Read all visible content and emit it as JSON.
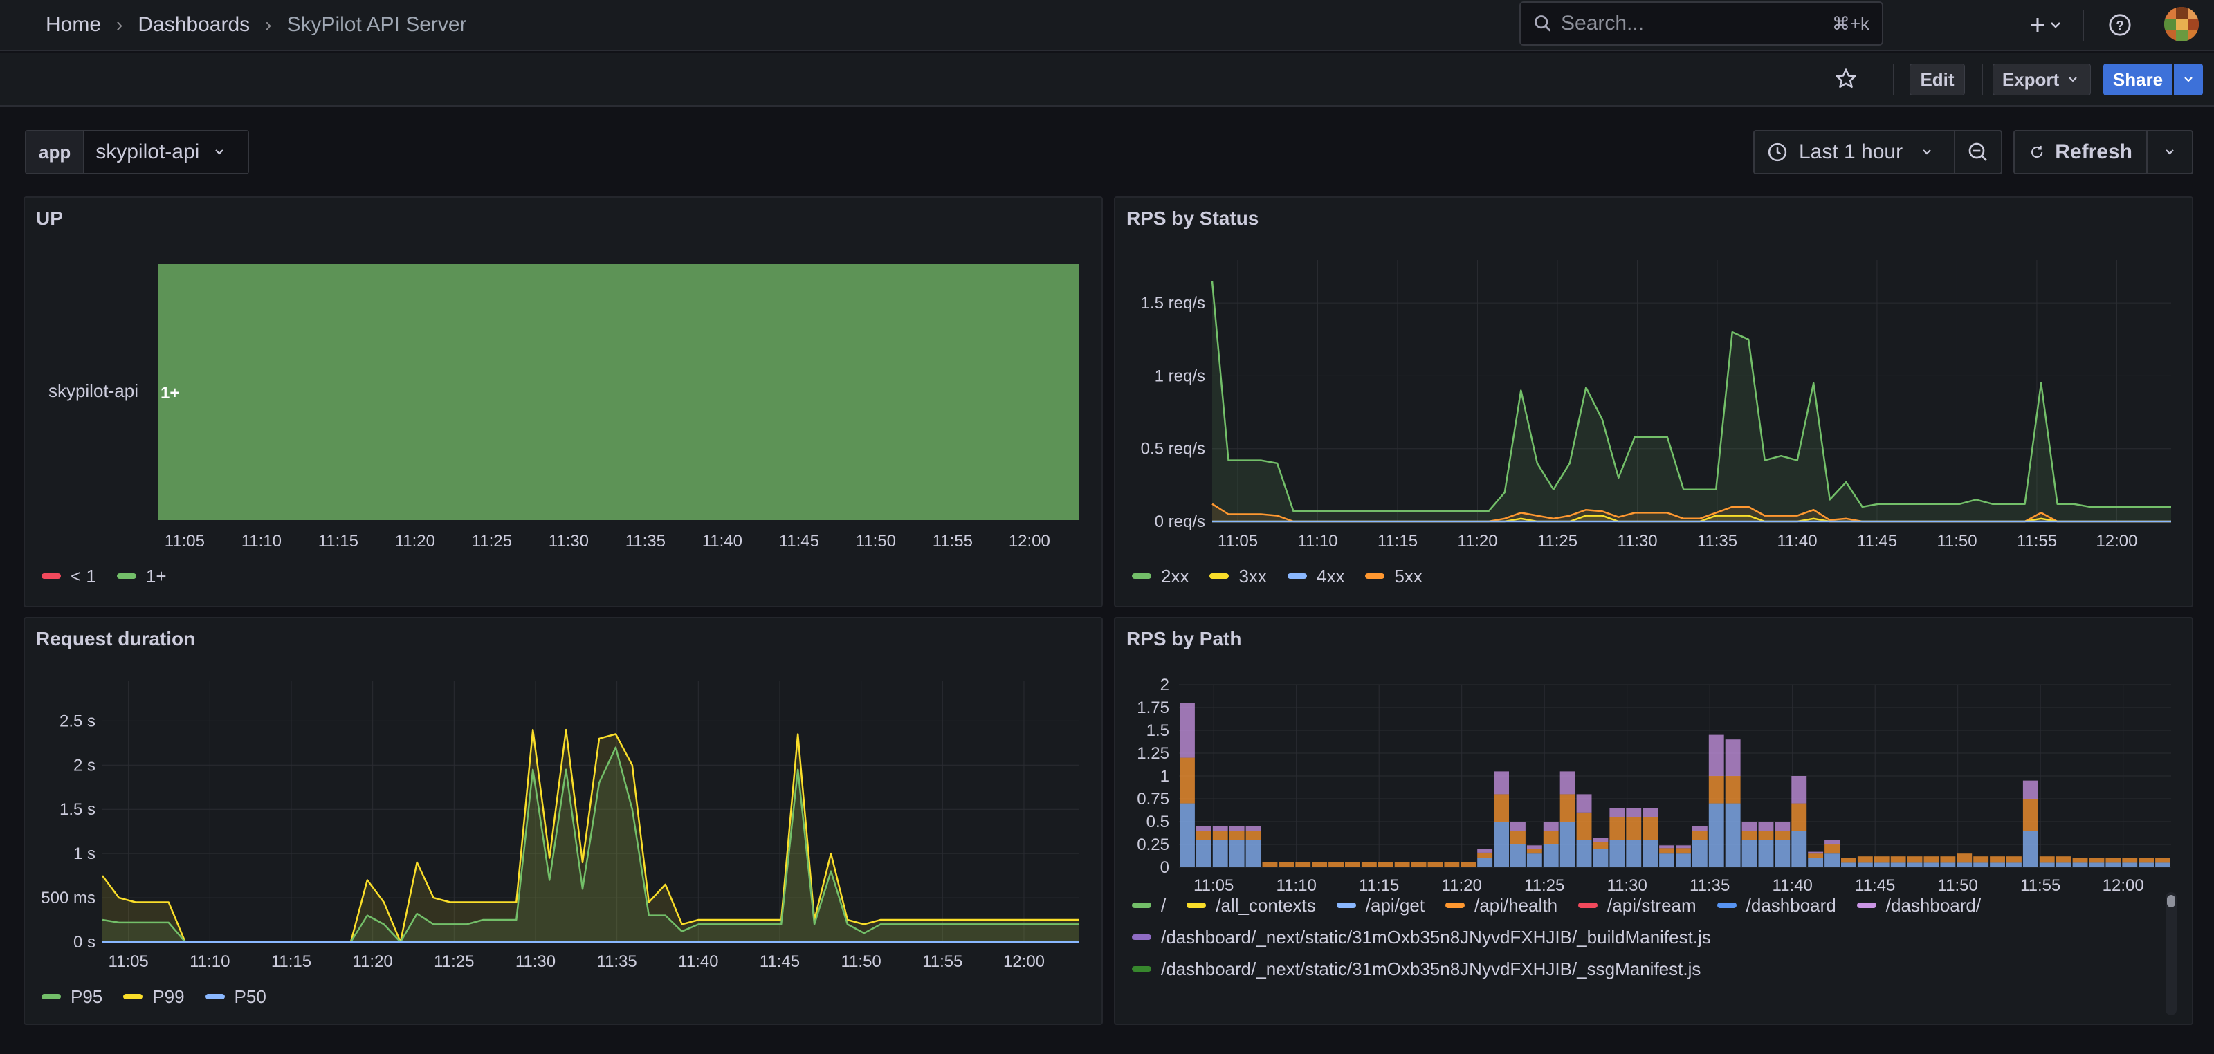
{
  "breadcrumb": {
    "home": "Home",
    "dashboards": "Dashboards",
    "current": "SkyPilot API Server"
  },
  "search": {
    "placeholder": "Search...",
    "shortcut": "⌘+k"
  },
  "toolbar": {
    "edit": "Edit",
    "export": "Export",
    "share": "Share"
  },
  "variable": {
    "label": "app",
    "value": "skypilot-api"
  },
  "time": {
    "range": "Last 1 hour",
    "refresh": "Refresh"
  },
  "icons": {
    "search": "search-icon",
    "star": "star-icon",
    "plus": "plus-icon",
    "help": "help-icon",
    "clock": "clock-icon",
    "zoom_out": "zoom-out-icon",
    "refresh": "refresh-icon"
  },
  "colors": {
    "green": "#73bf69",
    "yellow": "#fade2a",
    "blue": "#8ab8ff",
    "orange": "#ff9830",
    "red": "#f2495c",
    "purple": "#ca95e5",
    "darkgreen": "#37872d",
    "state_fill": "#5d9356"
  },
  "panels": {
    "up": {
      "title": "UP",
      "row_label": "skypilot-api",
      "value_text": "1+",
      "legend": [
        {
          "name": "< 1",
          "color": "#f2495c"
        },
        {
          "name": "1+",
          "color": "#73bf69"
        }
      ]
    },
    "rps_status": {
      "title": "RPS by Status",
      "legend": [
        {
          "name": "2xx",
          "color": "#73bf69"
        },
        {
          "name": "3xx",
          "color": "#fade2a"
        },
        {
          "name": "4xx",
          "color": "#8ab8ff"
        },
        {
          "name": "5xx",
          "color": "#ff9830"
        }
      ]
    },
    "duration": {
      "title": "Request duration",
      "legend": [
        {
          "name": "P95",
          "color": "#73bf69"
        },
        {
          "name": "P99",
          "color": "#fade2a"
        },
        {
          "name": "P50",
          "color": "#8ab8ff"
        }
      ]
    },
    "rps_path": {
      "title": "RPS by Path",
      "legend": [
        {
          "name": "/",
          "color": "#73bf69"
        },
        {
          "name": "/all_contexts",
          "color": "#fade2a"
        },
        {
          "name": "/api/get",
          "color": "#8ab8ff"
        },
        {
          "name": "/api/health",
          "color": "#ff9830"
        },
        {
          "name": "/api/stream",
          "color": "#f2495c"
        },
        {
          "name": "/dashboard",
          "color": "#5794f2"
        },
        {
          "name": "/dashboard/",
          "color": "#ca95e5"
        },
        {
          "name": "/dashboard/_next/static/31mOxb35n8JNyvdFXHJIB/_buildManifest.js",
          "color": "#8f6cc4"
        },
        {
          "name": "/dashboard/_next/static/31mOxb35n8JNyvdFXHJIB/_ssgManifest.js",
          "color": "#37872d"
        }
      ]
    }
  },
  "chart_data": [
    {
      "type": "heatmap",
      "title": "UP",
      "x_ticks": [
        "11:05",
        "11:10",
        "11:15",
        "11:20",
        "11:25",
        "11:30",
        "11:35",
        "11:40",
        "11:45",
        "11:50",
        "11:55",
        "12:00"
      ],
      "rows": [
        "skypilot-api"
      ],
      "state": "1+",
      "legend": [
        "< 1",
        "1+"
      ]
    },
    {
      "type": "area",
      "title": "RPS by Status",
      "x_ticks": [
        "11:05",
        "11:10",
        "11:15",
        "11:20",
        "11:25",
        "11:30",
        "11:35",
        "11:40",
        "11:45",
        "11:50",
        "11:55",
        "12:00"
      ],
      "y_ticks": [
        "0 req/s",
        "0.5 req/s",
        "1 req/s",
        "1.5 req/s"
      ],
      "ylim": [
        0,
        1.7
      ],
      "x": [
        0,
        1,
        2,
        3,
        4,
        5,
        6,
        7,
        8,
        9,
        10,
        11,
        12,
        13,
        14,
        15,
        16,
        17,
        18,
        19,
        20,
        21,
        22,
        23,
        24,
        25,
        26,
        27,
        28,
        29,
        30,
        31,
        32,
        33,
        34,
        35,
        36,
        37,
        38,
        39,
        40,
        41,
        42,
        43,
        44,
        45,
        46,
        47,
        48,
        49,
        50,
        51,
        52,
        53,
        54,
        55,
        56,
        57,
        58,
        59
      ],
      "series": [
        {
          "name": "2xx",
          "values": [
            1.65,
            0.42,
            0.42,
            0.42,
            0.4,
            0.07,
            0.07,
            0.07,
            0.07,
            0.07,
            0.07,
            0.07,
            0.07,
            0.07,
            0.07,
            0.07,
            0.07,
            0.07,
            0.2,
            0.9,
            0.4,
            0.22,
            0.4,
            0.92,
            0.7,
            0.3,
            0.58,
            0.58,
            0.58,
            0.22,
            0.22,
            0.22,
            1.3,
            1.25,
            0.42,
            0.45,
            0.42,
            0.95,
            0.15,
            0.27,
            0.1,
            0.12,
            0.12,
            0.12,
            0.12,
            0.12,
            0.12,
            0.15,
            0.12,
            0.12,
            0.12,
            0.95,
            0.12,
            0.12,
            0.1,
            0.1,
            0.1,
            0.1,
            0.1,
            0.1
          ]
        },
        {
          "name": "3xx",
          "values": [
            0,
            0,
            0,
            0,
            0,
            0,
            0,
            0,
            0,
            0,
            0,
            0,
            0,
            0,
            0,
            0,
            0,
            0,
            0,
            0.02,
            0,
            0,
            0,
            0.04,
            0.04,
            0,
            0,
            0,
            0,
            0,
            0,
            0.04,
            0.04,
            0.04,
            0,
            0,
            0,
            0.02,
            0,
            0,
            0,
            0,
            0,
            0,
            0,
            0,
            0,
            0,
            0,
            0,
            0,
            0.02,
            0,
            0,
            0,
            0,
            0,
            0,
            0,
            0
          ]
        },
        {
          "name": "4xx",
          "values": [
            0,
            0,
            0,
            0,
            0,
            0,
            0,
            0,
            0,
            0,
            0,
            0,
            0,
            0,
            0,
            0,
            0,
            0,
            0,
            0,
            0,
            0,
            0,
            0,
            0,
            0,
            0,
            0,
            0,
            0,
            0,
            0,
            0,
            0,
            0,
            0,
            0,
            0,
            0,
            0,
            0,
            0,
            0,
            0,
            0,
            0,
            0,
            0,
            0,
            0,
            0,
            0,
            0,
            0,
            0,
            0,
            0,
            0,
            0,
            0
          ]
        },
        {
          "name": "5xx",
          "values": [
            0.12,
            0.05,
            0.05,
            0.05,
            0.04,
            0,
            0,
            0,
            0,
            0,
            0,
            0,
            0,
            0,
            0,
            0,
            0,
            0,
            0.02,
            0.06,
            0.04,
            0.02,
            0.04,
            0.08,
            0.07,
            0.03,
            0.06,
            0.06,
            0.06,
            0.02,
            0.02,
            0.06,
            0.1,
            0.1,
            0.04,
            0.04,
            0.04,
            0.08,
            0.01,
            0.02,
            0,
            0,
            0,
            0,
            0,
            0,
            0,
            0,
            0,
            0,
            0,
            0.06,
            0,
            0,
            0,
            0,
            0,
            0,
            0,
            0
          ]
        }
      ]
    },
    {
      "type": "area",
      "title": "Request duration",
      "x_ticks": [
        "11:05",
        "11:10",
        "11:15",
        "11:20",
        "11:25",
        "11:30",
        "11:35",
        "11:40",
        "11:45",
        "11:50",
        "11:55",
        "12:00"
      ],
      "y_ticks": [
        "0 s",
        "500 ms",
        "1 s",
        "1.5 s",
        "2 s",
        "2.5 s"
      ],
      "ylim": [
        0,
        2.8
      ],
      "x": [
        0,
        1,
        2,
        3,
        4,
        5,
        6,
        7,
        8,
        9,
        10,
        11,
        12,
        13,
        14,
        15,
        16,
        17,
        18,
        19,
        20,
        21,
        22,
        23,
        24,
        25,
        26,
        27,
        28,
        29,
        30,
        31,
        32,
        33,
        34,
        35,
        36,
        37,
        38,
        39,
        40,
        41,
        42,
        43,
        44,
        45,
        46,
        47,
        48,
        49,
        50,
        51,
        52,
        53,
        54,
        55,
        56,
        57,
        58,
        59
      ],
      "series": [
        {
          "name": "P95",
          "values": [
            0.25,
            0.22,
            0.22,
            0.22,
            0.22,
            0,
            0,
            0,
            0,
            0,
            0,
            0,
            0,
            0,
            0,
            0,
            0.3,
            0.2,
            0,
            0.32,
            0.2,
            0.2,
            0.2,
            0.25,
            0.25,
            0.25,
            1.95,
            0.7,
            1.95,
            0.6,
            1.8,
            2.2,
            1.5,
            0.3,
            0.3,
            0.12,
            0.2,
            0.2,
            0.2,
            0.2,
            0.2,
            0.2,
            1.95,
            0.2,
            0.8,
            0.2,
            0.1,
            0.2,
            0.2,
            0.2,
            0.2,
            0.2,
            0.2,
            0.2,
            0.2,
            0.2,
            0.2,
            0.2,
            0.2,
            0.2
          ]
        },
        {
          "name": "P99",
          "values": [
            0.75,
            0.5,
            0.45,
            0.45,
            0.45,
            0,
            0,
            0,
            0,
            0,
            0,
            0,
            0,
            0,
            0,
            0,
            0.7,
            0.45,
            0,
            0.9,
            0.5,
            0.45,
            0.45,
            0.45,
            0.45,
            0.45,
            2.4,
            0.95,
            2.4,
            0.9,
            2.3,
            2.35,
            2.0,
            0.45,
            0.65,
            0.2,
            0.25,
            0.25,
            0.25,
            0.25,
            0.25,
            0.25,
            2.35,
            0.25,
            1.0,
            0.25,
            0.2,
            0.25,
            0.25,
            0.25,
            0.25,
            0.25,
            0.25,
            0.25,
            0.25,
            0.25,
            0.25,
            0.25,
            0.25,
            0.25
          ]
        },
        {
          "name": "P50",
          "values": [
            0,
            0,
            0,
            0,
            0,
            0,
            0,
            0,
            0,
            0,
            0,
            0,
            0,
            0,
            0,
            0,
            0,
            0,
            0,
            0,
            0,
            0,
            0,
            0,
            0,
            0,
            0,
            0,
            0,
            0,
            0,
            0,
            0,
            0,
            0,
            0,
            0,
            0,
            0,
            0,
            0,
            0,
            0,
            0,
            0,
            0,
            0,
            0,
            0,
            0,
            0,
            0,
            0,
            0,
            0,
            0,
            0,
            0,
            0,
            0
          ]
        }
      ]
    },
    {
      "type": "bar",
      "title": "RPS by Path",
      "stacked": true,
      "x_ticks": [
        "11:05",
        "11:10",
        "11:15",
        "11:20",
        "11:25",
        "11:30",
        "11:35",
        "11:40",
        "11:45",
        "11:50",
        "11:55",
        "12:00"
      ],
      "y_ticks": [
        "0",
        "0.25",
        "0.5",
        "0.75",
        "1",
        "1.25",
        "1.5",
        "1.75",
        "2"
      ],
      "ylim": [
        0,
        2
      ],
      "x": [
        0,
        1,
        2,
        3,
        4,
        5,
        6,
        7,
        8,
        9,
        10,
        11,
        12,
        13,
        14,
        15,
        16,
        17,
        18,
        19,
        20,
        21,
        22,
        23,
        24,
        25,
        26,
        27,
        28,
        29,
        30,
        31,
        32,
        33,
        34,
        35,
        36,
        37,
        38,
        39,
        40,
        41,
        42,
        43,
        44,
        45,
        46,
        47,
        48,
        49,
        50,
        51,
        52,
        53,
        54,
        55,
        56,
        57,
        58,
        59
      ],
      "series": [
        {
          "name": "/dashboard",
          "values": [
            0.7,
            0.3,
            0.3,
            0.3,
            0.3,
            0,
            0,
            0,
            0,
            0,
            0,
            0,
            0,
            0,
            0,
            0,
            0,
            0,
            0.1,
            0.5,
            0.25,
            0.15,
            0.25,
            0.5,
            0.3,
            0.2,
            0.3,
            0.3,
            0.3,
            0.15,
            0.15,
            0.3,
            0.7,
            0.7,
            0.3,
            0.3,
            0.3,
            0.4,
            0.1,
            0.15,
            0.05,
            0.05,
            0.05,
            0.05,
            0.05,
            0.05,
            0.05,
            0.05,
            0.05,
            0.05,
            0.05,
            0.4,
            0.05,
            0.05,
            0.05,
            0.05,
            0.05,
            0.05,
            0.05,
            0.05
          ]
        },
        {
          "name": "/api/health",
          "values": [
            0.5,
            0.1,
            0.1,
            0.1,
            0.1,
            0.06,
            0.06,
            0.06,
            0.06,
            0.06,
            0.06,
            0.06,
            0.06,
            0.06,
            0.06,
            0.06,
            0.06,
            0.06,
            0.06,
            0.3,
            0.15,
            0.05,
            0.15,
            0.3,
            0.3,
            0.08,
            0.25,
            0.25,
            0.25,
            0.06,
            0.06,
            0.1,
            0.3,
            0.3,
            0.1,
            0.1,
            0.1,
            0.3,
            0.05,
            0.1,
            0.05,
            0.07,
            0.07,
            0.07,
            0.07,
            0.07,
            0.07,
            0.1,
            0.07,
            0.07,
            0.07,
            0.35,
            0.07,
            0.07,
            0.05,
            0.05,
            0.05,
            0.05,
            0.05,
            0.05
          ]
        },
        {
          "name": "/api/get",
          "values": [
            0.6,
            0.05,
            0.05,
            0.05,
            0.05,
            0,
            0,
            0,
            0,
            0,
            0,
            0,
            0,
            0,
            0,
            0,
            0,
            0,
            0.04,
            0.25,
            0.1,
            0.04,
            0.1,
            0.25,
            0.2,
            0.04,
            0.1,
            0.1,
            0.1,
            0.03,
            0.03,
            0.05,
            0.45,
            0.4,
            0.1,
            0.1,
            0.1,
            0.3,
            0.02,
            0.05,
            0,
            0,
            0,
            0,
            0,
            0,
            0,
            0,
            0,
            0,
            0,
            0.2,
            0,
            0,
            0,
            0,
            0,
            0,
            0,
            0
          ]
        }
      ]
    }
  ]
}
